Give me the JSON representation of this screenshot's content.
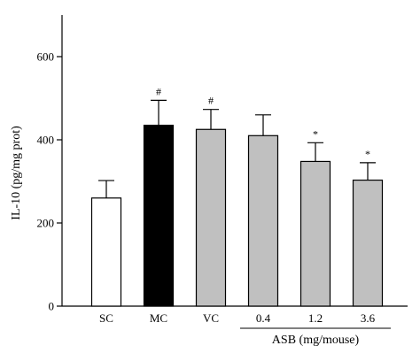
{
  "chart_data": {
    "type": "bar",
    "title": "",
    "ylabel": "IL-10 (pg/mg prot)",
    "xlabel": "",
    "ylim": [
      0,
      700
    ],
    "yticks": [
      0,
      200,
      400,
      600
    ],
    "grid": false,
    "categories": [
      "SC",
      "MC",
      "VC",
      "0.4",
      "1.2",
      "3.6"
    ],
    "values": [
      260,
      435,
      425,
      410,
      348,
      303
    ],
    "errors": [
      42,
      60,
      48,
      50,
      45,
      42
    ],
    "bar_colors": [
      "#ffffff",
      "#000000",
      "#c0c0c0",
      "#c0c0c0",
      "#c0c0c0",
      "#c0c0c0"
    ],
    "annotations": [
      "",
      "#",
      "#",
      "",
      "*",
      "*"
    ],
    "group_label": {
      "text": "ASB (mg/mouse)",
      "categories": [
        "0.4",
        "1.2",
        "3.6"
      ]
    }
  }
}
